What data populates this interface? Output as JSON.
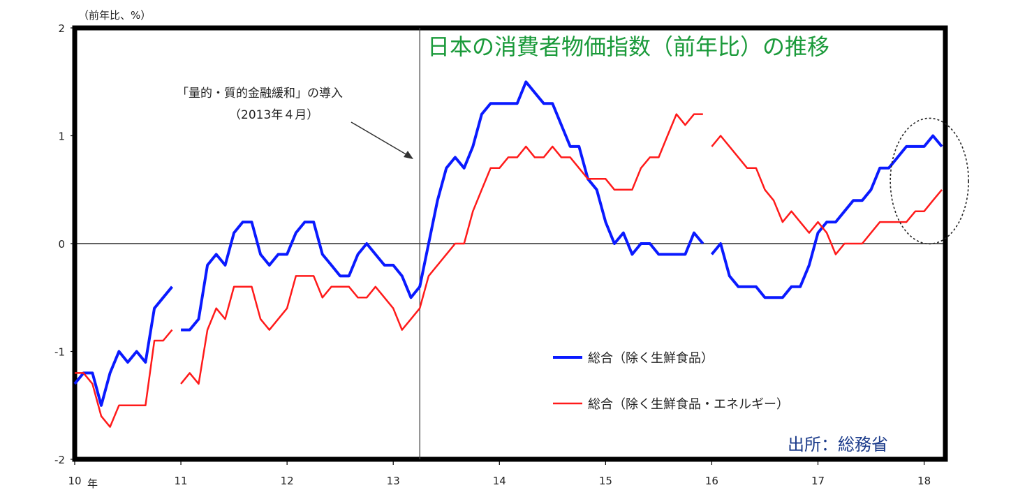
{
  "chart_data": {
    "type": "line",
    "title": "日本の消費者物価指数（前年比）の推移",
    "unit_label": "（前年比、%）",
    "ylim": [
      -2,
      2
    ],
    "yticks": [
      "2",
      "1",
      "0",
      "-1",
      "-2"
    ],
    "xlim": [
      2010.0,
      2018.2
    ],
    "xticks": [
      {
        "value": 2010,
        "label": "10"
      },
      {
        "value": 2011,
        "label": "11"
      },
      {
        "value": 2012,
        "label": "12"
      },
      {
        "value": 2013,
        "label": "13"
      },
      {
        "value": 2014,
        "label": "14"
      },
      {
        "value": 2015,
        "label": "15"
      },
      {
        "value": 2016,
        "label": "16"
      },
      {
        "value": 2017,
        "label": "17"
      },
      {
        "value": 2018,
        "label": "18"
      }
    ],
    "x_unit_label": "年",
    "series": [
      {
        "name": "総合（除く生鮮食品）",
        "color": "#0a1aff",
        "segments": [
          [
            [
              2010.0,
              -1.3
            ],
            [
              2010.083,
              -1.2
            ],
            [
              2010.167,
              -1.2
            ],
            [
              2010.25,
              -1.5
            ],
            [
              2010.333,
              -1.2
            ],
            [
              2010.417,
              -1.0
            ],
            [
              2010.5,
              -1.1
            ],
            [
              2010.583,
              -1.0
            ],
            [
              2010.667,
              -1.1
            ],
            [
              2010.75,
              -0.6
            ],
            [
              2010.833,
              -0.5
            ],
            [
              2010.917,
              -0.4
            ]
          ],
          [
            [
              2011.0,
              -0.8
            ],
            [
              2011.083,
              -0.8
            ],
            [
              2011.167,
              -0.7
            ],
            [
              2011.25,
              -0.2
            ],
            [
              2011.333,
              -0.1
            ],
            [
              2011.417,
              -0.2
            ],
            [
              2011.5,
              0.1
            ],
            [
              2011.583,
              0.2
            ],
            [
              2011.667,
              0.2
            ],
            [
              2011.75,
              -0.1
            ],
            [
              2011.833,
              -0.2
            ],
            [
              2011.917,
              -0.1
            ],
            [
              2012.0,
              -0.1
            ],
            [
              2012.083,
              0.1
            ],
            [
              2012.167,
              0.2
            ],
            [
              2012.25,
              0.2
            ],
            [
              2012.333,
              -0.1
            ],
            [
              2012.417,
              -0.2
            ],
            [
              2012.5,
              -0.3
            ],
            [
              2012.583,
              -0.3
            ],
            [
              2012.667,
              -0.1
            ],
            [
              2012.75,
              0.0
            ],
            [
              2012.833,
              -0.1
            ],
            [
              2012.917,
              -0.2
            ],
            [
              2013.0,
              -0.2
            ],
            [
              2013.083,
              -0.3
            ],
            [
              2013.167,
              -0.5
            ],
            [
              2013.25,
              -0.4
            ],
            [
              2013.333,
              0.0
            ],
            [
              2013.417,
              0.4
            ],
            [
              2013.5,
              0.7
            ],
            [
              2013.583,
              0.8
            ],
            [
              2013.667,
              0.7
            ],
            [
              2013.75,
              0.9
            ],
            [
              2013.833,
              1.2
            ],
            [
              2013.917,
              1.3
            ],
            [
              2014.0,
              1.3
            ],
            [
              2014.083,
              1.3
            ],
            [
              2014.167,
              1.3
            ],
            [
              2014.25,
              1.5
            ],
            [
              2014.333,
              1.4
            ],
            [
              2014.417,
              1.3
            ],
            [
              2014.5,
              1.3
            ],
            [
              2014.583,
              1.1
            ],
            [
              2014.667,
              0.9
            ],
            [
              2014.75,
              0.9
            ],
            [
              2014.833,
              0.6
            ],
            [
              2014.917,
              0.5
            ],
            [
              2015.0,
              0.2
            ],
            [
              2015.083,
              0.0
            ],
            [
              2015.167,
              0.1
            ],
            [
              2015.25,
              -0.1
            ],
            [
              2015.333,
              0.0
            ],
            [
              2015.417,
              0.0
            ],
            [
              2015.5,
              -0.1
            ],
            [
              2015.583,
              -0.1
            ],
            [
              2015.667,
              -0.1
            ],
            [
              2015.75,
              -0.1
            ],
            [
              2015.833,
              0.1
            ],
            [
              2015.917,
              0.0
            ]
          ],
          [
            [
              2016.0,
              -0.1
            ],
            [
              2016.083,
              0.0
            ],
            [
              2016.167,
              -0.3
            ],
            [
              2016.25,
              -0.4
            ],
            [
              2016.333,
              -0.4
            ],
            [
              2016.417,
              -0.4
            ],
            [
              2016.5,
              -0.5
            ],
            [
              2016.583,
              -0.5
            ],
            [
              2016.667,
              -0.5
            ],
            [
              2016.75,
              -0.4
            ],
            [
              2016.833,
              -0.4
            ],
            [
              2016.917,
              -0.2
            ],
            [
              2017.0,
              0.1
            ],
            [
              2017.083,
              0.2
            ],
            [
              2017.167,
              0.2
            ],
            [
              2017.25,
              0.3
            ],
            [
              2017.333,
              0.4
            ],
            [
              2017.417,
              0.4
            ],
            [
              2017.5,
              0.5
            ],
            [
              2017.583,
              0.7
            ],
            [
              2017.667,
              0.7
            ],
            [
              2017.75,
              0.8
            ],
            [
              2017.833,
              0.9
            ],
            [
              2017.917,
              0.9
            ],
            [
              2018.0,
              0.9
            ],
            [
              2018.083,
              1.0
            ],
            [
              2018.167,
              0.9
            ]
          ]
        ]
      },
      {
        "name": "総合（除く生鮮食品・エネルギー）",
        "color": "#ff1a1a",
        "segments": [
          [
            [
              2010.0,
              -1.2
            ],
            [
              2010.083,
              -1.2
            ],
            [
              2010.167,
              -1.3
            ],
            [
              2010.25,
              -1.6
            ],
            [
              2010.333,
              -1.7
            ],
            [
              2010.417,
              -1.5
            ],
            [
              2010.5,
              -1.5
            ],
            [
              2010.583,
              -1.5
            ],
            [
              2010.667,
              -1.5
            ],
            [
              2010.75,
              -0.9
            ],
            [
              2010.833,
              -0.9
            ],
            [
              2010.917,
              -0.8
            ]
          ],
          [
            [
              2011.0,
              -1.3
            ],
            [
              2011.083,
              -1.2
            ],
            [
              2011.167,
              -1.3
            ],
            [
              2011.25,
              -0.8
            ],
            [
              2011.333,
              -0.6
            ],
            [
              2011.417,
              -0.7
            ],
            [
              2011.5,
              -0.4
            ],
            [
              2011.583,
              -0.4
            ],
            [
              2011.667,
              -0.4
            ],
            [
              2011.75,
              -0.7
            ],
            [
              2011.833,
              -0.8
            ],
            [
              2011.917,
              -0.7
            ],
            [
              2012.0,
              -0.6
            ],
            [
              2012.083,
              -0.3
            ],
            [
              2012.167,
              -0.3
            ],
            [
              2012.25,
              -0.3
            ],
            [
              2012.333,
              -0.5
            ],
            [
              2012.417,
              -0.4
            ],
            [
              2012.5,
              -0.4
            ],
            [
              2012.583,
              -0.4
            ],
            [
              2012.667,
              -0.5
            ],
            [
              2012.75,
              -0.5
            ],
            [
              2012.833,
              -0.4
            ],
            [
              2012.917,
              -0.5
            ],
            [
              2013.0,
              -0.6
            ],
            [
              2013.083,
              -0.8
            ],
            [
              2013.167,
              -0.7
            ],
            [
              2013.25,
              -0.6
            ],
            [
              2013.333,
              -0.3
            ],
            [
              2013.417,
              -0.2
            ],
            [
              2013.5,
              -0.1
            ],
            [
              2013.583,
              0.0
            ],
            [
              2013.667,
              0.0
            ],
            [
              2013.75,
              0.3
            ],
            [
              2013.833,
              0.5
            ],
            [
              2013.917,
              0.7
            ],
            [
              2014.0,
              0.7
            ],
            [
              2014.083,
              0.8
            ],
            [
              2014.167,
              0.8
            ],
            [
              2014.25,
              0.9
            ],
            [
              2014.333,
              0.8
            ],
            [
              2014.417,
              0.8
            ],
            [
              2014.5,
              0.9
            ],
            [
              2014.583,
              0.8
            ],
            [
              2014.667,
              0.8
            ],
            [
              2014.75,
              0.7
            ],
            [
              2014.833,
              0.6
            ],
            [
              2014.917,
              0.6
            ],
            [
              2015.0,
              0.6
            ],
            [
              2015.083,
              0.5
            ],
            [
              2015.167,
              0.5
            ],
            [
              2015.25,
              0.5
            ],
            [
              2015.333,
              0.7
            ],
            [
              2015.417,
              0.8
            ],
            [
              2015.5,
              0.8
            ],
            [
              2015.583,
              1.0
            ],
            [
              2015.667,
              1.2
            ],
            [
              2015.75,
              1.1
            ],
            [
              2015.833,
              1.2
            ],
            [
              2015.917,
              1.2
            ]
          ],
          [
            [
              2016.0,
              0.9
            ],
            [
              2016.083,
              1.0
            ],
            [
              2016.167,
              0.9
            ],
            [
              2016.25,
              0.8
            ],
            [
              2016.333,
              0.7
            ],
            [
              2016.417,
              0.7
            ],
            [
              2016.5,
              0.5
            ],
            [
              2016.583,
              0.4
            ],
            [
              2016.667,
              0.2
            ],
            [
              2016.75,
              0.3
            ],
            [
              2016.833,
              0.2
            ],
            [
              2016.917,
              0.1
            ],
            [
              2017.0,
              0.2
            ],
            [
              2017.083,
              0.1
            ],
            [
              2017.167,
              -0.1
            ],
            [
              2017.25,
              0.0
            ],
            [
              2017.333,
              0.0
            ],
            [
              2017.417,
              0.0
            ],
            [
              2017.5,
              0.1
            ],
            [
              2017.583,
              0.2
            ],
            [
              2017.667,
              0.2
            ],
            [
              2017.75,
              0.2
            ],
            [
              2017.833,
              0.2
            ],
            [
              2017.917,
              0.3
            ],
            [
              2018.0,
              0.3
            ],
            [
              2018.083,
              0.4
            ],
            [
              2018.167,
              0.5
            ]
          ]
        ]
      }
    ],
    "reference_line": {
      "x": 2013.25
    },
    "annotation": {
      "line1": "「量的・質的金融緩和」の導入",
      "line2": "（2013年４月）"
    },
    "highlight": {
      "shape": "dashed-ellipse"
    },
    "source": "出所：総務省",
    "legend_position": "bottom-right",
    "grid": false
  }
}
